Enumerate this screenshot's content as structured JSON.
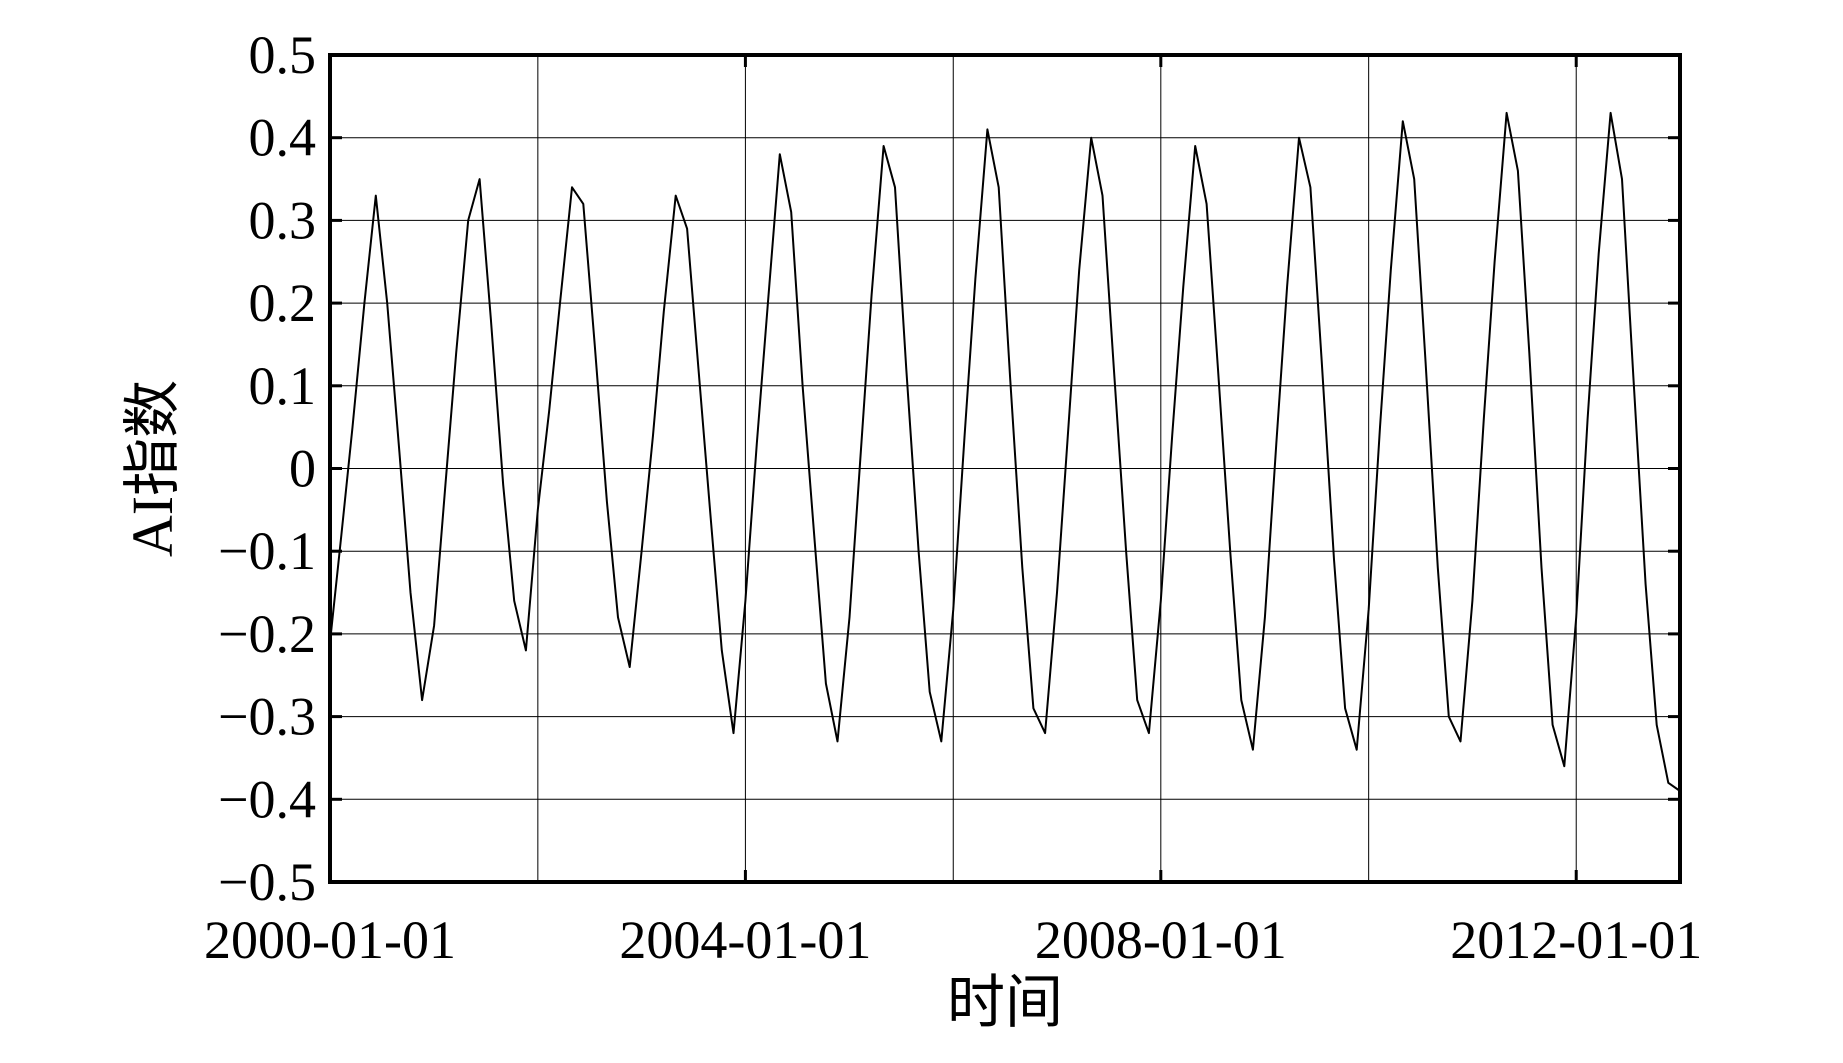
{
  "chart_data": {
    "type": "line",
    "title": "",
    "xlabel": "时间",
    "ylabel": "AI指数",
    "x_range": [
      "2000-01-01",
      "2012-12-31"
    ],
    "x_ticks": [
      "2000-01-01",
      "2004-01-01",
      "2008-01-01",
      "2012-01-01"
    ],
    "x_grid": [
      "2000-01-01",
      "2002-01-01",
      "2004-01-01",
      "2006-01-01",
      "2008-01-01",
      "2010-01-01",
      "2012-01-01"
    ],
    "ylim": [
      -0.5,
      0.5
    ],
    "y_ticks": [
      0.5,
      0.4,
      0.3,
      0.2,
      0.1,
      0,
      -0.1,
      -0.2,
      -0.3,
      -0.4,
      -0.5
    ],
    "y_tick_labels": [
      "0.5",
      "0.4",
      "0.3",
      "0.2",
      "0.1",
      "0",
      "−0.1",
      "−0.2",
      "−0.3",
      "−0.4",
      "−0.5"
    ],
    "grid": true,
    "line_color": "#000000",
    "grid_color": "#000000",
    "series": [
      {
        "x": [
          "2000-01-01",
          "2000-02-10",
          "2000-03-20",
          "2000-05-01",
          "2000-06-10",
          "2000-07-20",
          "2000-09-01",
          "2000-10-10",
          "2000-11-20",
          "2001-01-01",
          "2001-02-10",
          "2001-03-20",
          "2001-05-01",
          "2001-06-10",
          "2001-07-20",
          "2001-09-01",
          "2001-10-10",
          "2001-11-20",
          "2002-01-01",
          "2002-02-10",
          "2002-03-20",
          "2002-05-01",
          "2002-06-10",
          "2002-07-20",
          "2002-09-01",
          "2002-10-10",
          "2002-11-20",
          "2003-01-01",
          "2003-02-10",
          "2003-03-20",
          "2003-05-01",
          "2003-06-10",
          "2003-07-20",
          "2003-09-01",
          "2003-10-10",
          "2003-11-20",
          "2004-01-01",
          "2004-02-10",
          "2004-03-20",
          "2004-05-01",
          "2004-06-10",
          "2004-07-20",
          "2004-09-01",
          "2004-10-10",
          "2004-11-20",
          "2005-01-01",
          "2005-02-10",
          "2005-03-20",
          "2005-05-01",
          "2005-06-10",
          "2005-07-20",
          "2005-09-01",
          "2005-10-10",
          "2005-11-20",
          "2006-01-01",
          "2006-02-10",
          "2006-03-20",
          "2006-05-01",
          "2006-06-10",
          "2006-07-20",
          "2006-09-01",
          "2006-10-10",
          "2006-11-20",
          "2007-01-01",
          "2007-02-10",
          "2007-03-20",
          "2007-05-01",
          "2007-06-10",
          "2007-07-20",
          "2007-09-01",
          "2007-10-10",
          "2007-11-20",
          "2008-01-01",
          "2008-02-10",
          "2008-03-20",
          "2008-05-01",
          "2008-06-10",
          "2008-07-20",
          "2008-09-01",
          "2008-10-10",
          "2008-11-20",
          "2009-01-01",
          "2009-02-10",
          "2009-03-20",
          "2009-05-01",
          "2009-06-10",
          "2009-07-20",
          "2009-09-01",
          "2009-10-10",
          "2009-11-20",
          "2010-01-01",
          "2010-02-10",
          "2010-03-20",
          "2010-05-01",
          "2010-06-10",
          "2010-07-20",
          "2010-09-01",
          "2010-10-10",
          "2010-11-20",
          "2011-01-01",
          "2011-02-10",
          "2011-03-20",
          "2011-05-01",
          "2011-06-10",
          "2011-07-20",
          "2011-09-01",
          "2011-10-10",
          "2011-11-20",
          "2012-01-01",
          "2012-02-10",
          "2012-03-20",
          "2012-05-01",
          "2012-06-10",
          "2012-07-20",
          "2012-09-01",
          "2012-10-10",
          "2012-11-20",
          "2012-12-31"
        ],
        "y": [
          -0.21,
          -0.08,
          0.05,
          0.2,
          0.33,
          0.2,
          0.02,
          -0.15,
          -0.28,
          -0.19,
          -0.02,
          0.14,
          0.3,
          0.35,
          0.18,
          -0.02,
          -0.16,
          -0.22,
          -0.05,
          0.07,
          0.2,
          0.34,
          0.32,
          0.15,
          -0.04,
          -0.18,
          -0.24,
          -0.1,
          0.04,
          0.19,
          0.33,
          0.29,
          0.12,
          -0.06,
          -0.22,
          -0.32,
          -0.16,
          0.03,
          0.2,
          0.38,
          0.31,
          0.1,
          -0.09,
          -0.26,
          -0.33,
          -0.18,
          0.02,
          0.21,
          0.39,
          0.34,
          0.12,
          -0.1,
          -0.27,
          -0.33,
          -0.17,
          0.04,
          0.23,
          0.41,
          0.34,
          0.11,
          -0.12,
          -0.29,
          -0.32,
          -0.15,
          0.05,
          0.24,
          0.4,
          0.33,
          0.12,
          -0.1,
          -0.28,
          -0.32,
          -0.16,
          0.04,
          0.22,
          0.39,
          0.32,
          0.12,
          -0.1,
          -0.28,
          -0.34,
          -0.18,
          0.03,
          0.22,
          0.4,
          0.34,
          0.13,
          -0.11,
          -0.29,
          -0.34,
          -0.17,
          0.05,
          0.24,
          0.42,
          0.35,
          0.13,
          -0.12,
          -0.3,
          -0.33,
          -0.16,
          0.06,
          0.25,
          0.43,
          0.36,
          0.14,
          -0.12,
          -0.31,
          -0.36,
          -0.18,
          0.06,
          0.26,
          0.43,
          0.35,
          0.11,
          -0.14,
          -0.31,
          -0.38,
          -0.39
        ]
      }
    ]
  }
}
